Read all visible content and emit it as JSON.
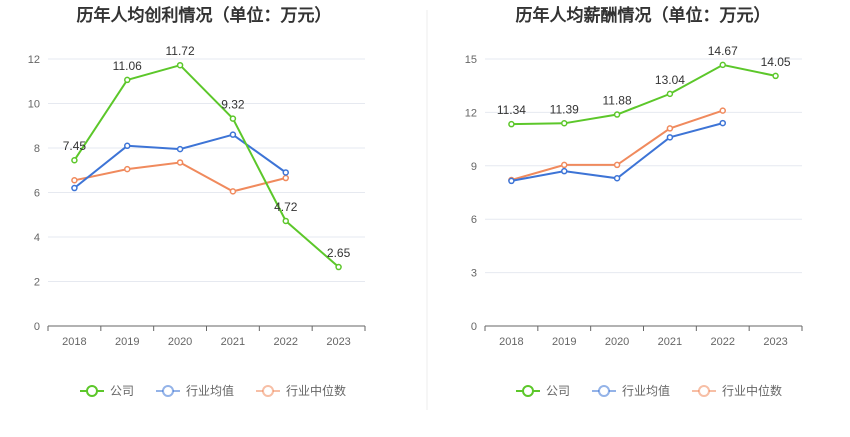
{
  "chart_data": [
    {
      "type": "line",
      "title": "历年人均创利情况（单位：万元）",
      "categories": [
        "2018",
        "2019",
        "2020",
        "2021",
        "2022",
        "2023"
      ],
      "ylim": [
        0,
        12
      ],
      "yticks": [
        "0",
        "2",
        "4",
        "6",
        "8",
        "10",
        "12"
      ],
      "grid": true,
      "legend_position": "bottom",
      "series": [
        {
          "name": "公司",
          "color": "#5cc72a",
          "values": [
            7.45,
            11.06,
            11.72,
            9.32,
            4.72,
            2.65
          ],
          "labels": [
            "7.45",
            "11.06",
            "11.72",
            "9.32",
            "4.72",
            "2.65"
          ]
        },
        {
          "name": "行业均值",
          "color": "#3d74d6",
          "values": [
            6.2,
            8.1,
            7.95,
            8.6,
            6.9,
            null
          ]
        },
        {
          "name": "行业中位数",
          "color": "#f08a5d",
          "values": [
            6.55,
            7.05,
            7.35,
            6.05,
            6.65,
            null
          ]
        }
      ]
    },
    {
      "type": "line",
      "title": "历年人均薪酬情况（单位：万元）",
      "categories": [
        "2018",
        "2019",
        "2020",
        "2021",
        "2022",
        "2023"
      ],
      "ylim": [
        0,
        15
      ],
      "yticks": [
        "0",
        "3",
        "6",
        "9",
        "12",
        "15"
      ],
      "grid": true,
      "legend_position": "bottom",
      "series": [
        {
          "name": "公司",
          "color": "#5cc72a",
          "values": [
            11.34,
            11.39,
            11.88,
            13.04,
            14.67,
            14.05
          ],
          "labels": [
            "11.34",
            "11.39",
            "11.88",
            "13.04",
            "14.67",
            "14.05"
          ]
        },
        {
          "name": "行业均值",
          "color": "#3d74d6",
          "values": [
            8.15,
            8.7,
            8.3,
            10.6,
            11.4,
            null
          ]
        },
        {
          "name": "行业中位数",
          "color": "#f08a5d",
          "values": [
            8.2,
            9.05,
            9.05,
            11.1,
            12.1,
            null
          ]
        }
      ]
    }
  ]
}
